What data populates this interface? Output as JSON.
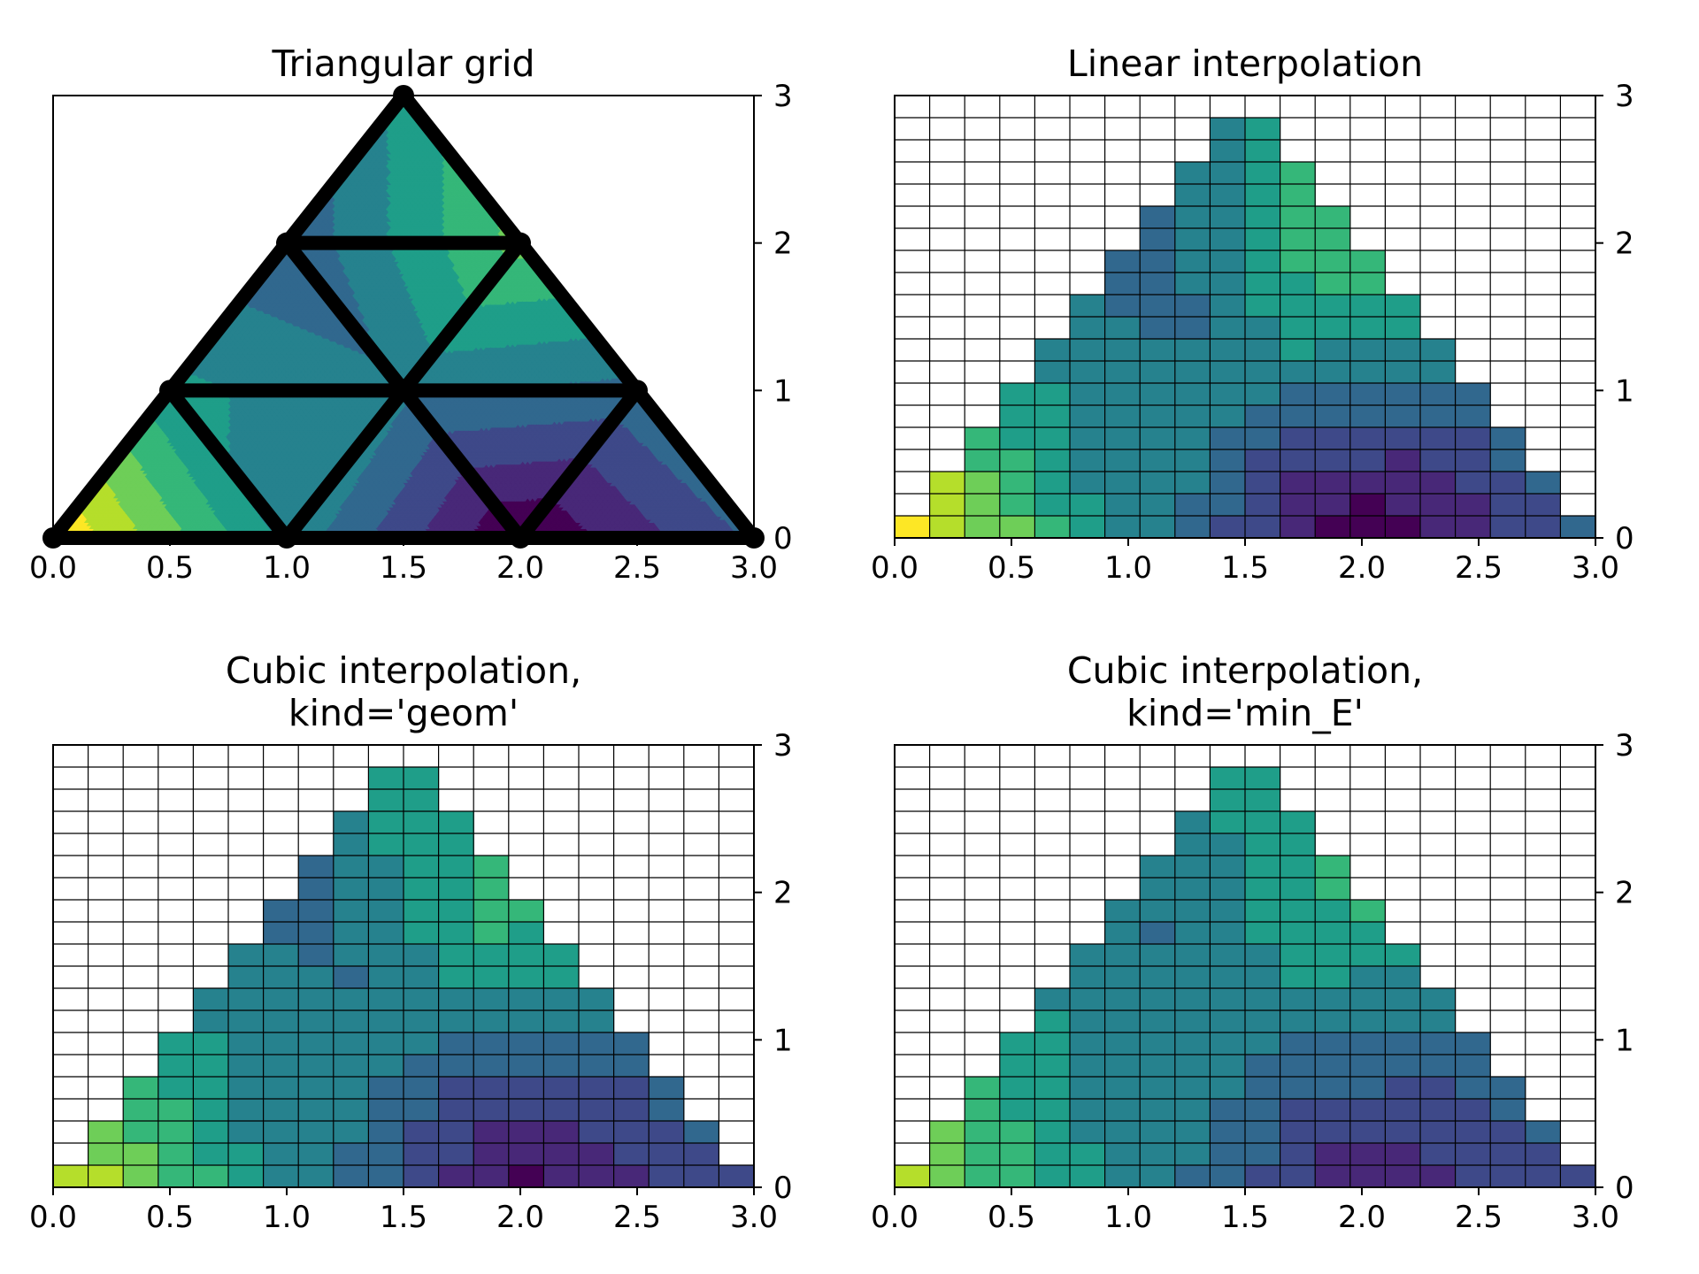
{
  "figure": {
    "colormap": [
      "#440154",
      "#482878",
      "#3e4989",
      "#31688e",
      "#26828e",
      "#1f9e89",
      "#35b779",
      "#6ece58",
      "#b5de2b",
      "#fde725"
    ]
  },
  "chart_data": [
    {
      "type": "contour",
      "title": "Triangular grid",
      "xlabel": "",
      "ylabel": "",
      "xlim": [
        0,
        3
      ],
      "ylim": [
        0,
        3
      ],
      "x_ticks": [
        "0.0",
        "0.5",
        "1.0",
        "1.5",
        "2.0",
        "2.5",
        "3.0"
      ],
      "y_ticks": [
        "0",
        "1",
        "2",
        "3"
      ],
      "y_axis_side": "right",
      "grid": false,
      "triangulation": {
        "x": [
          0.0,
          1.0,
          2.0,
          3.0,
          0.5,
          1.5,
          2.5,
          1.0,
          2.0,
          1.5
        ],
        "y": [
          0.0,
          0.0,
          0.0,
          0.0,
          1.0,
          1.0,
          1.0,
          2.0,
          2.0,
          3.0
        ],
        "triangles": [
          [
            0,
            1,
            4
          ],
          [
            1,
            2,
            5
          ],
          [
            2,
            3,
            6
          ],
          [
            1,
            5,
            4
          ],
          [
            2,
            6,
            5
          ],
          [
            4,
            5,
            7
          ],
          [
            5,
            6,
            8
          ],
          [
            5,
            8,
            7
          ],
          [
            7,
            8,
            9
          ]
        ],
        "z": [
          1.0,
          0.5,
          0.05,
          0.35,
          0.55,
          0.45,
          0.4,
          0.35,
          0.75,
          0.55
        ]
      }
    },
    {
      "type": "contour",
      "title": "Linear interpolation",
      "xlabel": "",
      "ylabel": "",
      "xlim": [
        0,
        3
      ],
      "ylim": [
        0,
        3
      ],
      "x_ticks": [
        "0.0",
        "0.5",
        "1.0",
        "1.5",
        "2.0",
        "2.5",
        "3.0"
      ],
      "y_ticks": [
        "0",
        "1",
        "2",
        "3"
      ],
      "y_axis_side": "right",
      "grid": true,
      "grid_size": [
        20,
        20
      ],
      "interpolation": "linear"
    },
    {
      "type": "contour",
      "title": "Cubic interpolation,\nkind='geom'",
      "xlabel": "",
      "ylabel": "",
      "xlim": [
        0,
        3
      ],
      "ylim": [
        0,
        3
      ],
      "x_ticks": [
        "0.0",
        "0.5",
        "1.0",
        "1.5",
        "2.0",
        "2.5",
        "3.0"
      ],
      "y_ticks": [
        "0",
        "1",
        "2",
        "3"
      ],
      "y_axis_side": "right",
      "grid": true,
      "grid_size": [
        20,
        20
      ],
      "interpolation": "cubic-geom"
    },
    {
      "type": "contour",
      "title": "Cubic interpolation,\nkind='min_E'",
      "xlabel": "",
      "ylabel": "",
      "xlim": [
        0,
        3
      ],
      "ylim": [
        0,
        3
      ],
      "x_ticks": [
        "0.0",
        "0.5",
        "1.0",
        "1.5",
        "2.0",
        "2.5",
        "3.0"
      ],
      "y_ticks": [
        "0",
        "1",
        "2",
        "3"
      ],
      "y_axis_side": "right",
      "grid": true,
      "grid_size": [
        20,
        20
      ],
      "interpolation": "cubic-min_E"
    }
  ]
}
